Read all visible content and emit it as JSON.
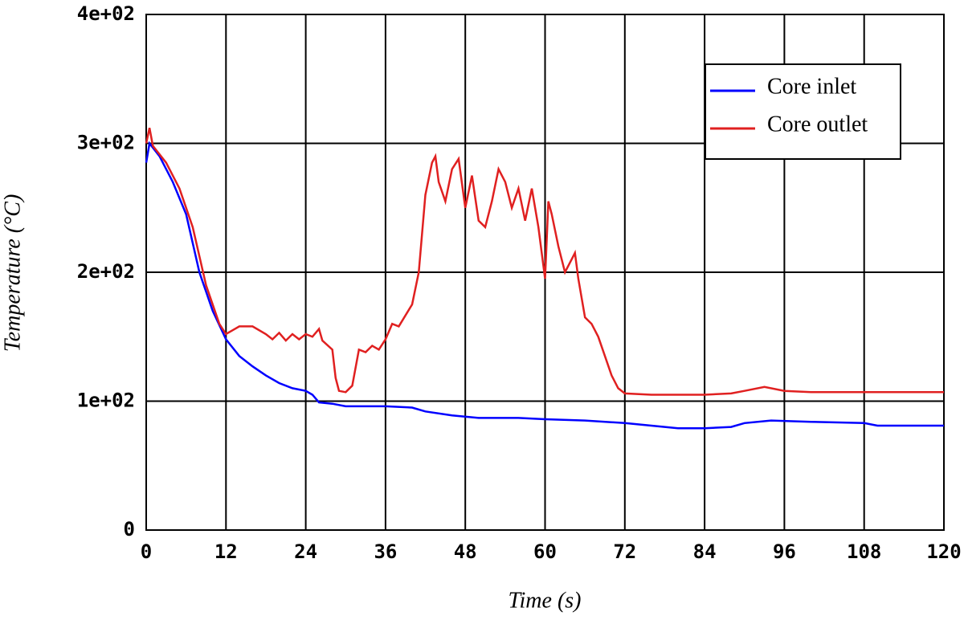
{
  "chart_data": {
    "type": "line",
    "xlabel": "Time (s)",
    "ylabel": "Temperature (°C)",
    "xlim": [
      0,
      120
    ],
    "xticks": [
      0,
      12,
      24,
      36,
      48,
      60,
      72,
      84,
      96,
      108,
      120
    ],
    "ylim": [
      0,
      400
    ],
    "yticks": [
      0,
      {
        "value": 100,
        "label": "1e+02"
      },
      {
        "value": 200,
        "label": "2e+02"
      },
      {
        "value": 300,
        "label": "3e+02"
      },
      {
        "value": 400,
        "label": "4e+02"
      }
    ],
    "grid": true,
    "legend": "upper right",
    "series": [
      {
        "name": "Core inlet",
        "color": "#0000ff",
        "x": [
          0,
          0.5,
          2,
          4,
          6,
          8,
          10,
          12,
          14,
          16,
          18,
          20,
          22,
          24,
          25,
          26,
          28,
          30,
          36,
          40,
          42,
          46,
          50,
          56,
          60,
          66,
          72,
          76,
          80,
          84,
          88,
          90,
          94,
          100,
          108,
          110,
          120
        ],
        "values": [
          285,
          300,
          290,
          270,
          245,
          200,
          170,
          148,
          135,
          127,
          120,
          114,
          110,
          108,
          105,
          99,
          98,
          96,
          96,
          95,
          92,
          89,
          87,
          87,
          86,
          85,
          83,
          81,
          79,
          79,
          80,
          83,
          85,
          84,
          83,
          81,
          81
        ]
      },
      {
        "name": "Core outlet",
        "color": "#e02020",
        "x": [
          0,
          0.5,
          1,
          3,
          5,
          7,
          9,
          11,
          12,
          13,
          14,
          16,
          18,
          19,
          20,
          21,
          22,
          23,
          24,
          25,
          26,
          26.5,
          28,
          28.5,
          29,
          30,
          31,
          32,
          33,
          34,
          35,
          36,
          37,
          38,
          40,
          41,
          42,
          43,
          43.5,
          44,
          45,
          46,
          47,
          48,
          49,
          50,
          51,
          52,
          53,
          54,
          55,
          56,
          57,
          58,
          59,
          60,
          60.5,
          61,
          62,
          63,
          64,
          64.5,
          65,
          66,
          67,
          68,
          69,
          70,
          71,
          72,
          76,
          84,
          88,
          90,
          93,
          96,
          100,
          108,
          120
        ],
        "values": [
          300,
          312,
          298,
          285,
          265,
          235,
          190,
          160,
          152,
          155,
          158,
          158,
          152,
          148,
          153,
          147,
          152,
          148,
          152,
          150,
          156,
          147,
          140,
          118,
          108,
          107,
          112,
          140,
          138,
          143,
          140,
          148,
          160,
          158,
          175,
          200,
          260,
          285,
          290,
          270,
          255,
          280,
          288,
          250,
          275,
          240,
          235,
          255,
          280,
          270,
          250,
          265,
          240,
          265,
          235,
          195,
          255,
          245,
          220,
          200,
          210,
          215,
          195,
          165,
          160,
          150,
          135,
          120,
          110,
          106,
          105,
          105,
          106,
          108,
          111,
          108,
          107,
          107,
          107
        ]
      }
    ]
  }
}
